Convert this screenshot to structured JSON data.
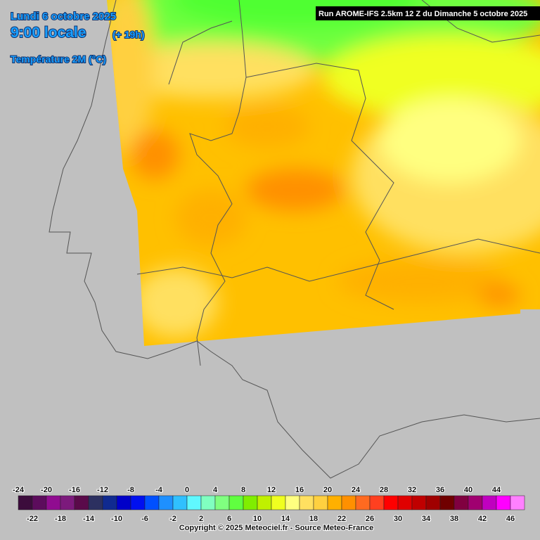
{
  "header": {
    "date": "Lundi 6 octobre 2025",
    "time": "9:00 locale",
    "lead": "(+ 19h)",
    "parameter": "Température 2M (°C)",
    "run": "Run AROME-IFS 2.5km 12 Z du Dimanche 5 octobre 2025"
  },
  "legend": {
    "stops": [
      -24,
      -22,
      -20,
      -18,
      -16,
      -14,
      -12,
      -10,
      -8,
      -6,
      -4,
      -2,
      0,
      2,
      4,
      6,
      8,
      10,
      12,
      14,
      16,
      18,
      20,
      22,
      24,
      26,
      28,
      30,
      32,
      34,
      36,
      38,
      40,
      42,
      44,
      46
    ],
    "colors": [
      "#3c0c3c",
      "#5c0c5c",
      "#900c90",
      "#7c1a7c",
      "#5a0a4a",
      "#2c3060",
      "#102a90",
      "#0000c8",
      "#0010f0",
      "#0050ff",
      "#1e90ff",
      "#30c0ff",
      "#60f8ff",
      "#80ffc0",
      "#80ff80",
      "#60ff40",
      "#80ee00",
      "#c0f000",
      "#f0ff20",
      "#ffff80",
      "#ffe060",
      "#ffd040",
      "#ffb000",
      "#ff9000",
      "#ff6a20",
      "#ff4020",
      "#ff0000",
      "#e00000",
      "#c00000",
      "#a00000",
      "#700000",
      "#800040",
      "#a00070",
      "#c000c0",
      "#ff00ff",
      "#ff80ff"
    ]
  },
  "footer": {
    "copyright": "Copyright © 2025 Meteociel.fr - Source Meteo-France"
  }
}
